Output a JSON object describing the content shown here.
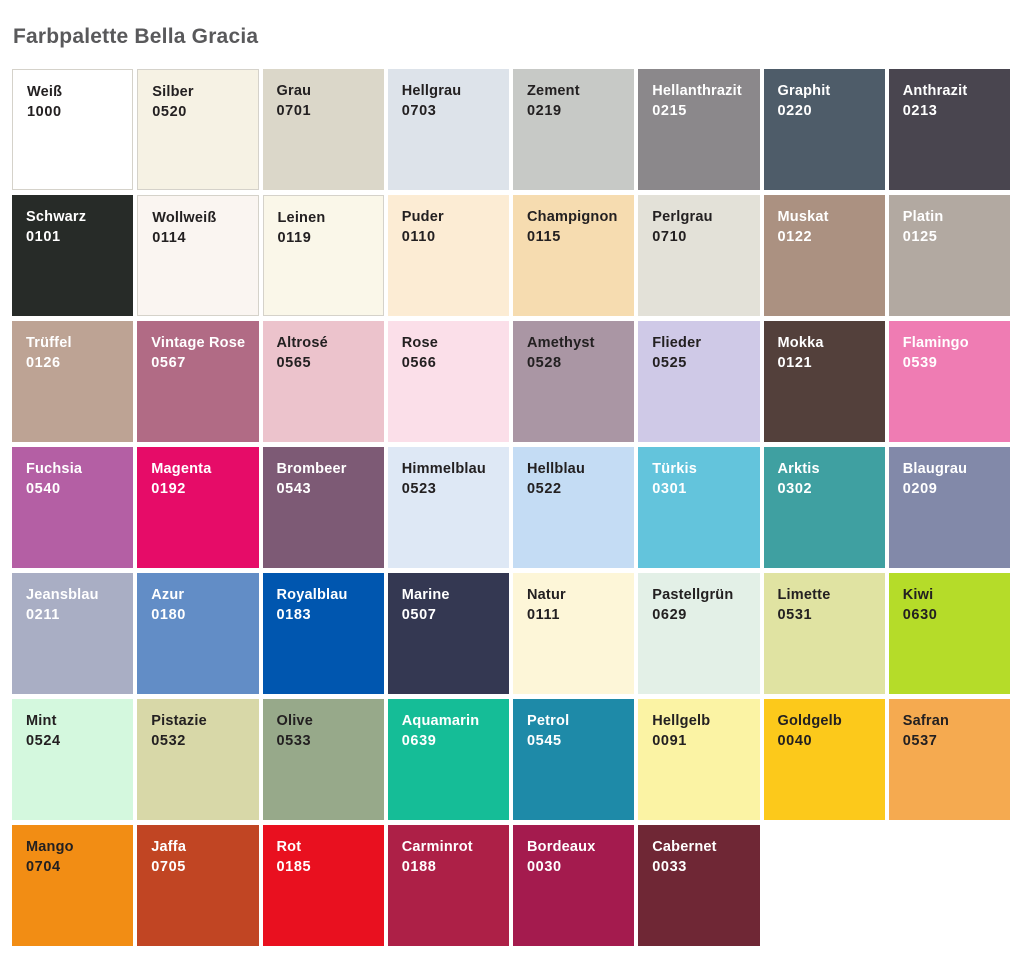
{
  "page": {
    "title": "Farbpalette Bella Gracia"
  },
  "palette": {
    "columns": 8,
    "text_dark": "#232021",
    "text_light": "#ffffff",
    "border_color": "#d5d2ca",
    "swatches": [
      {
        "name": "Weiß",
        "code": "1000",
        "bg": "#ffffff",
        "text": "dark",
        "border": true
      },
      {
        "name": "Silber",
        "code": "0520",
        "bg": "#f6f2e4",
        "text": "dark",
        "border": true
      },
      {
        "name": "Grau",
        "code": "0701",
        "bg": "#dbd7c9",
        "text": "dark",
        "border": false
      },
      {
        "name": "Hellgrau",
        "code": "0703",
        "bg": "#dde3ea",
        "text": "dark",
        "border": false
      },
      {
        "name": "Zement",
        "code": "0219",
        "bg": "#c7c9c6",
        "text": "dark",
        "border": false
      },
      {
        "name": "Hellanthrazit",
        "code": "0215",
        "bg": "#8b888b",
        "text": "light",
        "border": false
      },
      {
        "name": "Graphit",
        "code": "0220",
        "bg": "#4e5c69",
        "text": "light",
        "border": false
      },
      {
        "name": "Anthrazit",
        "code": "0213",
        "bg": "#49454f",
        "text": "light",
        "border": false
      },
      {
        "name": "Schwarz",
        "code": "0101",
        "bg": "#272b28",
        "text": "light",
        "border": false
      },
      {
        "name": "Wollweiß",
        "code": "0114",
        "bg": "#faf5f1",
        "text": "dark",
        "border": true
      },
      {
        "name": "Leinen",
        "code": "0119",
        "bg": "#faf7e9",
        "text": "dark",
        "border": true
      },
      {
        "name": "Puder",
        "code": "0110",
        "bg": "#fcecd4",
        "text": "dark",
        "border": false
      },
      {
        "name": "Champignon",
        "code": "0115",
        "bg": "#f6dcb0",
        "text": "dark",
        "border": false
      },
      {
        "name": "Perlgrau",
        "code": "0710",
        "bg": "#e3e1d8",
        "text": "dark",
        "border": false
      },
      {
        "name": "Muskat",
        "code": "0122",
        "bg": "#ab9181",
        "text": "light",
        "border": false
      },
      {
        "name": "Platin",
        "code": "0125",
        "bg": "#b2a9a1",
        "text": "light",
        "border": false
      },
      {
        "name": "Trüffel",
        "code": "0126",
        "bg": "#bda394",
        "text": "light",
        "border": false
      },
      {
        "name": "Vintage Rose",
        "code": "0567",
        "bg": "#b16b85",
        "text": "light",
        "border": false
      },
      {
        "name": "Altrosé",
        "code": "0565",
        "bg": "#ecc3cc",
        "text": "dark",
        "border": false
      },
      {
        "name": "Rose",
        "code": "0566",
        "bg": "#fbdfe9",
        "text": "dark",
        "border": false
      },
      {
        "name": "Amethyst",
        "code": "0528",
        "bg": "#aa96a4",
        "text": "dark",
        "border": false
      },
      {
        "name": "Flieder",
        "code": "0525",
        "bg": "#cfc9e7",
        "text": "dark",
        "border": false
      },
      {
        "name": "Mokka",
        "code": "0121",
        "bg": "#53403b",
        "text": "light",
        "border": false
      },
      {
        "name": "Flamingo",
        "code": "0539",
        "bg": "#ef7cb3",
        "text": "light",
        "border": false
      },
      {
        "name": "Fuchsia",
        "code": "0540",
        "bg": "#b45fa4",
        "text": "light",
        "border": false
      },
      {
        "name": "Magenta",
        "code": "0192",
        "bg": "#e60c68",
        "text": "light",
        "border": false
      },
      {
        "name": "Brombeer",
        "code": "0543",
        "bg": "#7d5a75",
        "text": "light",
        "border": false
      },
      {
        "name": "Himmelblau",
        "code": "0523",
        "bg": "#dee8f5",
        "text": "dark",
        "border": false
      },
      {
        "name": "Hellblau",
        "code": "0522",
        "bg": "#c4dcf4",
        "text": "dark",
        "border": false
      },
      {
        "name": "Türkis",
        "code": "0301",
        "bg": "#63c4dc",
        "text": "light",
        "border": false
      },
      {
        "name": "Arktis",
        "code": "0302",
        "bg": "#3fa0a1",
        "text": "light",
        "border": false
      },
      {
        "name": "Blaugrau",
        "code": "0209",
        "bg": "#8289a9",
        "text": "light",
        "border": false
      },
      {
        "name": "Jeansblau",
        "code": "0211",
        "bg": "#a9aec4",
        "text": "light",
        "border": false
      },
      {
        "name": "Azur",
        "code": "0180",
        "bg": "#628dc6",
        "text": "light",
        "border": false
      },
      {
        "name": "Royalblau",
        "code": "0183",
        "bg": "#0056af",
        "text": "light",
        "border": false
      },
      {
        "name": "Marine",
        "code": "0507",
        "bg": "#343852",
        "text": "light",
        "border": false
      },
      {
        "name": "Natur",
        "code": "0111",
        "bg": "#fdf6d8",
        "text": "dark",
        "border": false
      },
      {
        "name": "Pastellgrün",
        "code": "0629",
        "bg": "#e3f0e7",
        "text": "dark",
        "border": false
      },
      {
        "name": "Limette",
        "code": "0531",
        "bg": "#e0e3a2",
        "text": "dark",
        "border": false
      },
      {
        "name": "Kiwi",
        "code": "0630",
        "bg": "#b5dc29",
        "text": "dark",
        "border": false
      },
      {
        "name": "Mint",
        "code": "0524",
        "bg": "#d4f8de",
        "text": "dark",
        "border": false
      },
      {
        "name": "Pistazie",
        "code": "0532",
        "bg": "#d8d8a8",
        "text": "dark",
        "border": false
      },
      {
        "name": "Olive",
        "code": "0533",
        "bg": "#97a98a",
        "text": "dark",
        "border": false
      },
      {
        "name": "Aquamarin",
        "code": "0639",
        "bg": "#15bd97",
        "text": "light",
        "border": false
      },
      {
        "name": "Petrol",
        "code": "0545",
        "bg": "#1e8aa8",
        "text": "light",
        "border": false
      },
      {
        "name": "Hellgelb",
        "code": "0091",
        "bg": "#fbf3a4",
        "text": "dark",
        "border": false
      },
      {
        "name": "Goldgelb",
        "code": "0040",
        "bg": "#fcc91b",
        "text": "dark",
        "border": false
      },
      {
        "name": "Safran",
        "code": "0537",
        "bg": "#f5aa50",
        "text": "dark",
        "border": false
      },
      {
        "name": "Mango",
        "code": "0704",
        "bg": "#f28d14",
        "text": "dark",
        "border": false
      },
      {
        "name": "Jaffa",
        "code": "0705",
        "bg": "#c14523",
        "text": "light",
        "border": false
      },
      {
        "name": "Rot",
        "code": "0185",
        "bg": "#e9101f",
        "text": "light",
        "border": false
      },
      {
        "name": "Carminrot",
        "code": "0188",
        "bg": "#ad2047",
        "text": "light",
        "border": false
      },
      {
        "name": "Bordeaux",
        "code": "0030",
        "bg": "#a41b4e",
        "text": "light",
        "border": false
      },
      {
        "name": "Cabernet",
        "code": "0033",
        "bg": "#6f2735",
        "text": "light",
        "border": false
      }
    ]
  }
}
